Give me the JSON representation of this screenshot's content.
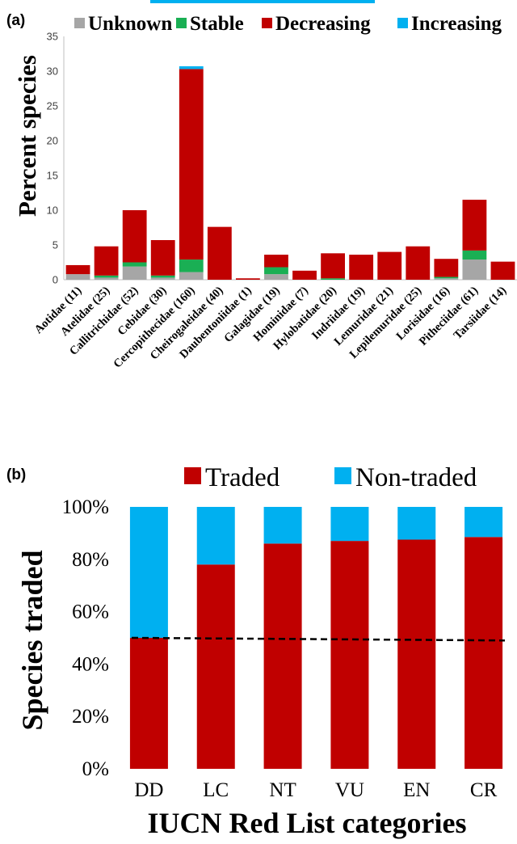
{
  "figure": {
    "panel_a_label": "(a)",
    "panel_b_label": "(b)"
  },
  "chart_data": [
    {
      "type": "bar",
      "stacked": true,
      "ylabel": "Percent species",
      "xlabel": "",
      "ylim": [
        0,
        35
      ],
      "yticks": [
        "0",
        "5",
        "10",
        "15",
        "20",
        "25",
        "30",
        "35"
      ],
      "grid": false,
      "legend_position": "top",
      "categories": [
        "Aotidae (11)",
        "Atelidae (25)",
        "Callitrichidae (52)",
        "Cebidae (30)",
        "Cercopithecidae (160)",
        "Cheirogaleidae (40)",
        "Daubentoniidae (1)",
        "Galagidae (19)",
        "Hominidae (7)",
        "Hylobatidae (20)",
        "Indriidae (19)",
        "Lemuridae (21)",
        "Lepilemuridae (25)",
        "Lorisidae (16)",
        "Pitheciidae (61)",
        "Tarsiidae (14)"
      ],
      "series": [
        {
          "name": "Unknown",
          "color": "#a6a6a6",
          "values": [
            0.8,
            0.3,
            1.9,
            0.3,
            1.1,
            0,
            0,
            0.8,
            0,
            0,
            0,
            0,
            0,
            0.2,
            2.9,
            0
          ]
        },
        {
          "name": "Stable",
          "color": "#1aaf54",
          "values": [
            0,
            0.3,
            0.6,
            0.3,
            1.8,
            0,
            0,
            1,
            0,
            0.2,
            0,
            0,
            0,
            0.2,
            1.3,
            0
          ]
        },
        {
          "name": "Decreasing",
          "color": "#c00000",
          "values": [
            1.3,
            4.2,
            7.5,
            5.1,
            27.4,
            7.6,
            0.2,
            1.8,
            1.3,
            3.6,
            3.6,
            4,
            4.8,
            2.6,
            7.3,
            2.6
          ]
        },
        {
          "name": "Increasing",
          "color": "#00b0f0",
          "values": [
            0,
            0,
            0,
            0,
            0.4,
            0,
            0,
            0,
            0,
            0,
            0,
            0,
            0,
            0,
            0,
            0
          ]
        }
      ]
    },
    {
      "type": "bar",
      "stacked": true,
      "ylabel": "Species traded",
      "xlabel": "IUCN Red List categories",
      "ylim": [
        0,
        100
      ],
      "yticks": [
        "0%",
        "20%",
        "40%",
        "60%",
        "80%",
        "100%"
      ],
      "grid": false,
      "legend_position": "top",
      "reference_line": {
        "style": "dashed",
        "y_start": 50,
        "y_end": 49
      },
      "categories": [
        "DD",
        "LC",
        "NT",
        "VU",
        "EN",
        "CR"
      ],
      "series": [
        {
          "name": "Traded",
          "color": "#c00000",
          "values": [
            50,
            78,
            86,
            87,
            87.5,
            88.5
          ]
        },
        {
          "name": "Non-traded",
          "color": "#00b0f0",
          "values": [
            50,
            22,
            14,
            13,
            12.5,
            11.5
          ]
        }
      ]
    }
  ]
}
